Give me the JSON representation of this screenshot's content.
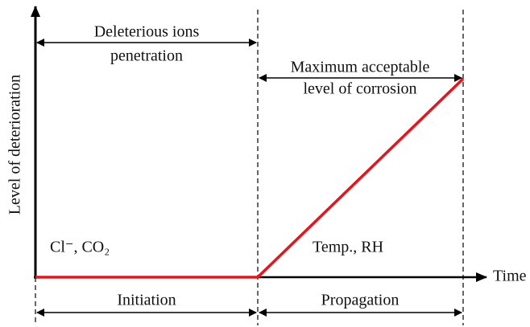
{
  "diagram": {
    "y_axis_label": "Level of deterioration",
    "x_axis_label": "Time",
    "top_spans": [
      {
        "lines": [
          "Deleterious ions",
          "penetration"
        ]
      },
      {
        "lines": [
          "Maximum acceptable",
          "level of corrosion"
        ]
      }
    ],
    "phase_factors": [
      "Cl⁻, CO₂",
      "Temp., RH"
    ],
    "phases": [
      "Initiation",
      "Propagation"
    ]
  }
}
